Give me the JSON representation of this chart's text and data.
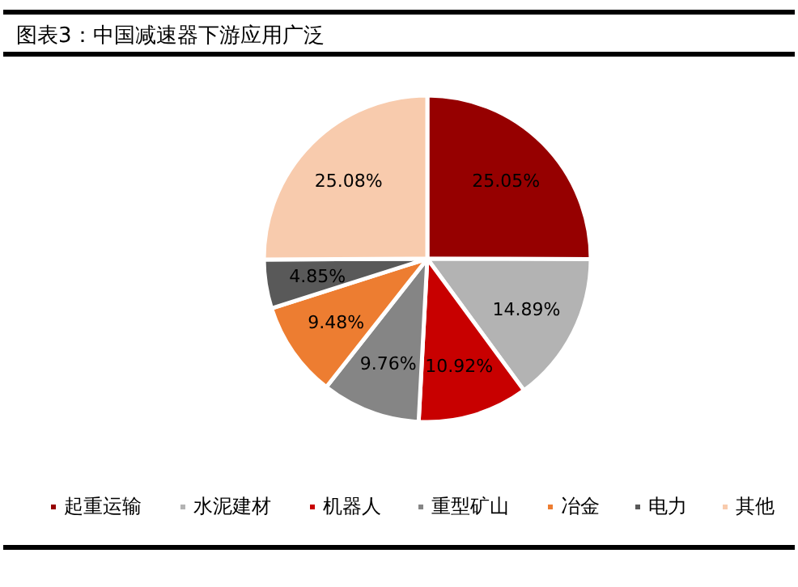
{
  "chart_data": {
    "type": "pie",
    "title": "图表3：中国减速器下游应用广泛",
    "categories": [
      "起重运输",
      "水泥建材",
      "机器人",
      "重型矿山",
      "冶金",
      "电力",
      "其他"
    ],
    "values": [
      25.05,
      14.89,
      10.92,
      9.76,
      9.48,
      4.85,
      25.08
    ],
    "colors": [
      "#960000",
      "#b3b3b3",
      "#c80000",
      "#858585",
      "#ed7d31",
      "#595959",
      "#f8cbad"
    ],
    "value_labels": [
      "25.05%",
      "14.89%",
      "10.92%",
      "9.76%",
      "9.48%",
      "4.85%",
      "25.08%"
    ],
    "legend": "bottom"
  }
}
